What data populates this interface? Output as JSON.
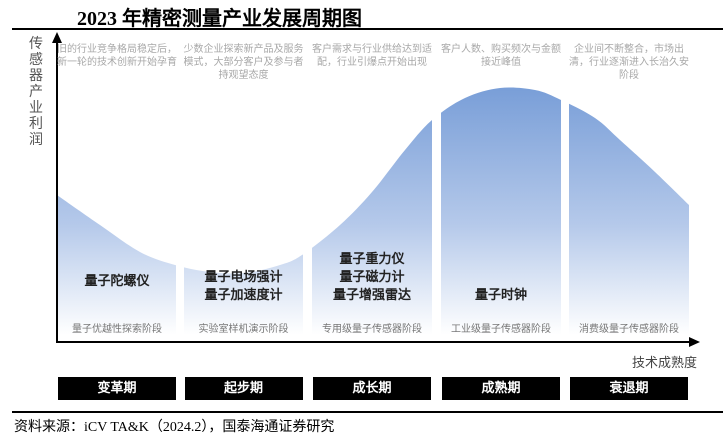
{
  "title": "2023 年精密测量产业发展周期图",
  "y_axis_label": "传感器产业利润",
  "x_axis_label": "技术成熟度",
  "colors": {
    "curve_top": "#7a9fd8",
    "curve_bottom": "#ffffff",
    "period_bg": "#000000"
  },
  "stages": [
    {
      "description": "旧的行业竞争格局稳定后，新一轮的技术创新开始孕育",
      "products": [
        "量子陀螺仪"
      ],
      "stage": "量子优越性探索阶段",
      "period": "变革期"
    },
    {
      "description": "少数企业探索新产品及服务模式，大部分客户及参与者持观望态度",
      "products": [
        "量子电场强计",
        "量子加速度计"
      ],
      "stage": "实验室样机演示阶段",
      "period": "起步期"
    },
    {
      "description": "客户需求与行业供给达到适配，行业引爆点开始出现",
      "products": [
        "量子重力仪",
        "量子磁力计",
        "量子增强雷达"
      ],
      "stage": "专用级量子传感器阶段",
      "period": "成长期"
    },
    {
      "description": "客户人数、购买频次与金额接近峰值",
      "products": [
        "量子时钟"
      ],
      "stage": "工业级量子传感器阶段",
      "period": "成熟期"
    },
    {
      "description": "企业间不断整合，市场出清，行业逐渐进入长治久安阶段",
      "products": [],
      "stage": "消费级量子传感器阶段",
      "period": "衰退期"
    }
  ],
  "source": "资料来源：iCV TA&K（2024.2），国泰海通证券研究"
}
